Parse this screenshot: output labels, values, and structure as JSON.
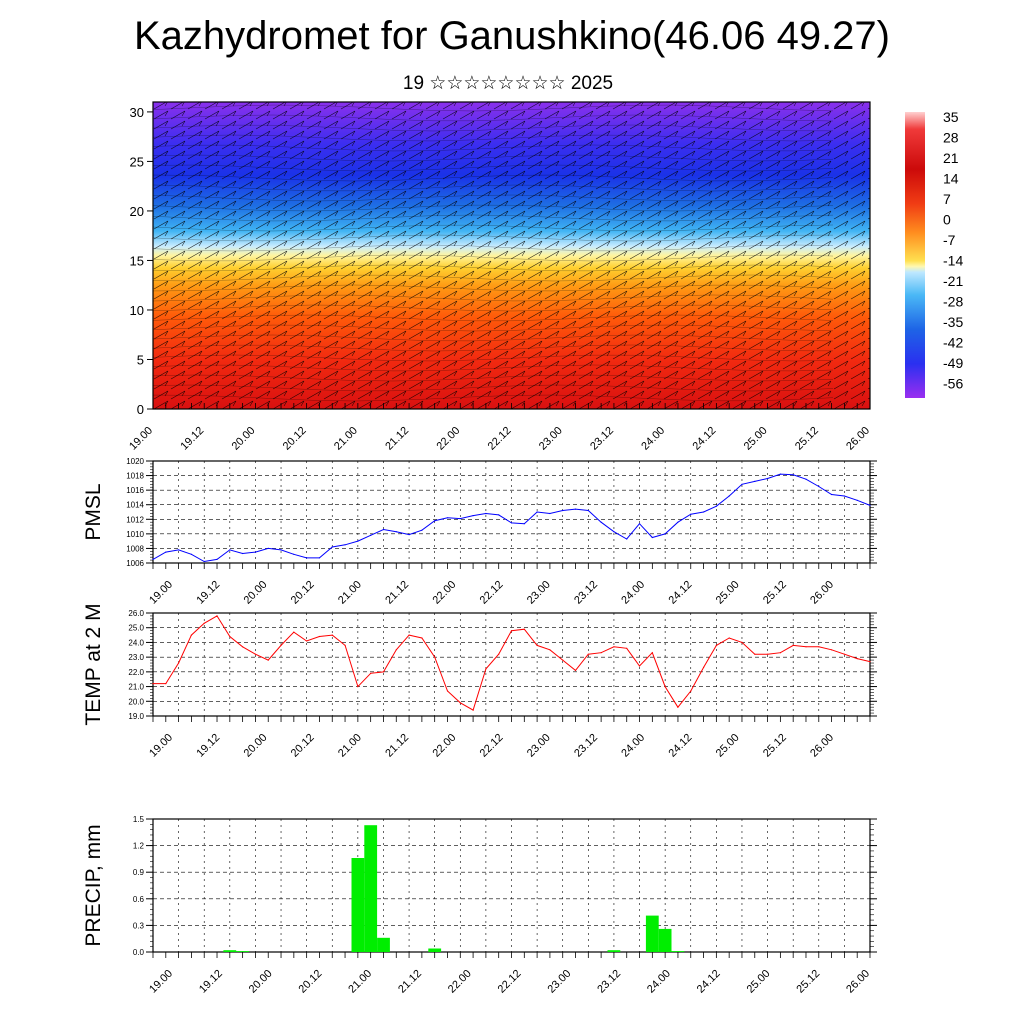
{
  "title": "Kazhydromet for Ganushkino(46.06 49.27)",
  "subtitle": "19 ☆☆☆☆☆☆☆☆ 2025",
  "time_labels": [
    "19.00",
    "19.12",
    "20.00",
    "20.12",
    "21.00",
    "21.12",
    "22.00",
    "22.12",
    "23.00",
    "23.12",
    "24.00",
    "24.12",
    "25.00",
    "25.12",
    "26.00"
  ],
  "chart_data": [
    {
      "type": "heatmap",
      "name": "upper-air-temperature",
      "title": "",
      "x": [
        "19.00",
        "19.12",
        "20.00",
        "20.12",
        "21.00",
        "21.12",
        "22.00",
        "22.12",
        "23.00",
        "23.12",
        "24.00",
        "24.12",
        "25.00",
        "25.12",
        "26.00"
      ],
      "xlim": [
        0,
        168
      ],
      "ylim": [
        0,
        31
      ],
      "yticks": [
        0,
        5,
        10,
        15,
        20,
        25,
        30
      ],
      "colorbar": {
        "labels": [
          "35",
          "28",
          "21",
          "14",
          "7",
          "0",
          "-7",
          "-14",
          "-21",
          "-28",
          "-35",
          "-42",
          "-49",
          "-56"
        ],
        "range": [
          -60,
          38
        ]
      },
      "overlay": "wind barbs / vectors"
    },
    {
      "type": "line",
      "name": "pmsl",
      "ylabel": "PMSL",
      "ylim": [
        1006,
        1020
      ],
      "yticks": [
        1006,
        1008,
        1010,
        1012,
        1014,
        1016,
        1018,
        1020
      ],
      "ytick_labels": [
        "1006",
        "1008",
        "1010",
        "1012",
        "1014",
        "1016",
        "1018",
        "1020"
      ],
      "color": "#0000ff",
      "x": [
        0,
        3,
        6,
        9,
        12,
        15,
        18,
        21,
        24,
        27,
        30,
        33,
        36,
        39,
        42,
        45,
        48,
        51,
        54,
        57,
        60,
        63,
        66,
        69,
        72,
        75,
        78,
        81,
        84,
        87,
        90,
        93,
        96,
        99,
        102,
        105,
        108,
        111,
        114,
        117,
        120,
        123,
        126,
        129,
        132,
        135,
        138,
        141,
        144,
        147,
        150,
        153,
        156,
        159,
        162,
        165,
        168
      ],
      "values": [
        1006.5,
        1007.5,
        1007.8,
        1007.2,
        1006.2,
        1006.5,
        1007.8,
        1007.3,
        1007.5,
        1008.0,
        1007.8,
        1007.2,
        1006.7,
        1006.7,
        1008.2,
        1008.5,
        1009.0,
        1009.8,
        1010.6,
        1010.3,
        1009.9,
        1010.5,
        1011.8,
        1012.2,
        1012.1,
        1012.5,
        1012.8,
        1012.6,
        1011.5,
        1011.4,
        1013.0,
        1012.8,
        1013.2,
        1013.4,
        1013.2,
        1011.6,
        1010.3,
        1009.3,
        1011.4,
        1009.5,
        1010.0,
        1011.6,
        1012.7,
        1013.0,
        1013.8,
        1015.2,
        1016.8,
        1017.2,
        1017.6,
        1018.2,
        1018.1,
        1017.5,
        1016.5,
        1015.4,
        1015.2,
        1014.6,
        1013.9
      ]
    },
    {
      "type": "line",
      "name": "temp-2m",
      "ylabel": "TEMP at 2 M",
      "ylim": [
        19,
        26
      ],
      "yticks": [
        19,
        20,
        21,
        22,
        23,
        24,
        25,
        26
      ],
      "ytick_labels": [
        "19.0",
        "20.0",
        "21.0",
        "22.0",
        "23.0",
        "24.0",
        "25.0",
        "26.0"
      ],
      "color": "#ff0000",
      "x": [
        0,
        3,
        6,
        9,
        12,
        15,
        18,
        21,
        24,
        27,
        30,
        33,
        36,
        39,
        42,
        45,
        48,
        51,
        54,
        57,
        60,
        63,
        66,
        69,
        72,
        75,
        78,
        81,
        84,
        87,
        90,
        93,
        96,
        99,
        102,
        105,
        108,
        111,
        114,
        117,
        120,
        123,
        126,
        129,
        132,
        135,
        138,
        141,
        144,
        147,
        150,
        153,
        156,
        159,
        162,
        165,
        168
      ],
      "values": [
        21.2,
        21.2,
        22.6,
        24.5,
        25.3,
        25.8,
        24.4,
        23.7,
        23.2,
        22.8,
        23.8,
        24.7,
        24.1,
        24.4,
        24.5,
        23.8,
        21.0,
        21.9,
        22.0,
        23.5,
        24.5,
        24.3,
        23.0,
        20.7,
        19.9,
        19.4,
        22.2,
        23.2,
        24.8,
        24.9,
        23.8,
        23.5,
        22.8,
        22.1,
        23.2,
        23.3,
        23.7,
        23.6,
        22.4,
        23.3,
        21.0,
        19.6,
        20.7,
        22.3,
        23.8,
        24.3,
        24.0,
        23.2,
        23.2,
        23.3,
        23.8,
        23.7,
        23.7,
        23.5,
        23.2,
        22.9,
        22.7
      ]
    },
    {
      "type": "bar",
      "name": "precip",
      "ylabel": "PRECIP, mm",
      "ylim": [
        0,
        1.5
      ],
      "yticks": [
        0,
        0.3,
        0.6,
        0.9,
        1.2,
        1.5
      ],
      "ytick_labels": [
        "0.0",
        "0.3",
        "0.6",
        "0.9",
        "1.2",
        "1.5"
      ],
      "color": "#00ee00",
      "x": [
        18,
        21,
        48,
        51,
        54,
        66,
        108,
        117,
        120,
        123
      ],
      "values": [
        0.02,
        0.01,
        1.06,
        1.43,
        0.16,
        0.04,
        0.02,
        0.41,
        0.26,
        0.01
      ],
      "bar_width_hours": 3
    }
  ]
}
